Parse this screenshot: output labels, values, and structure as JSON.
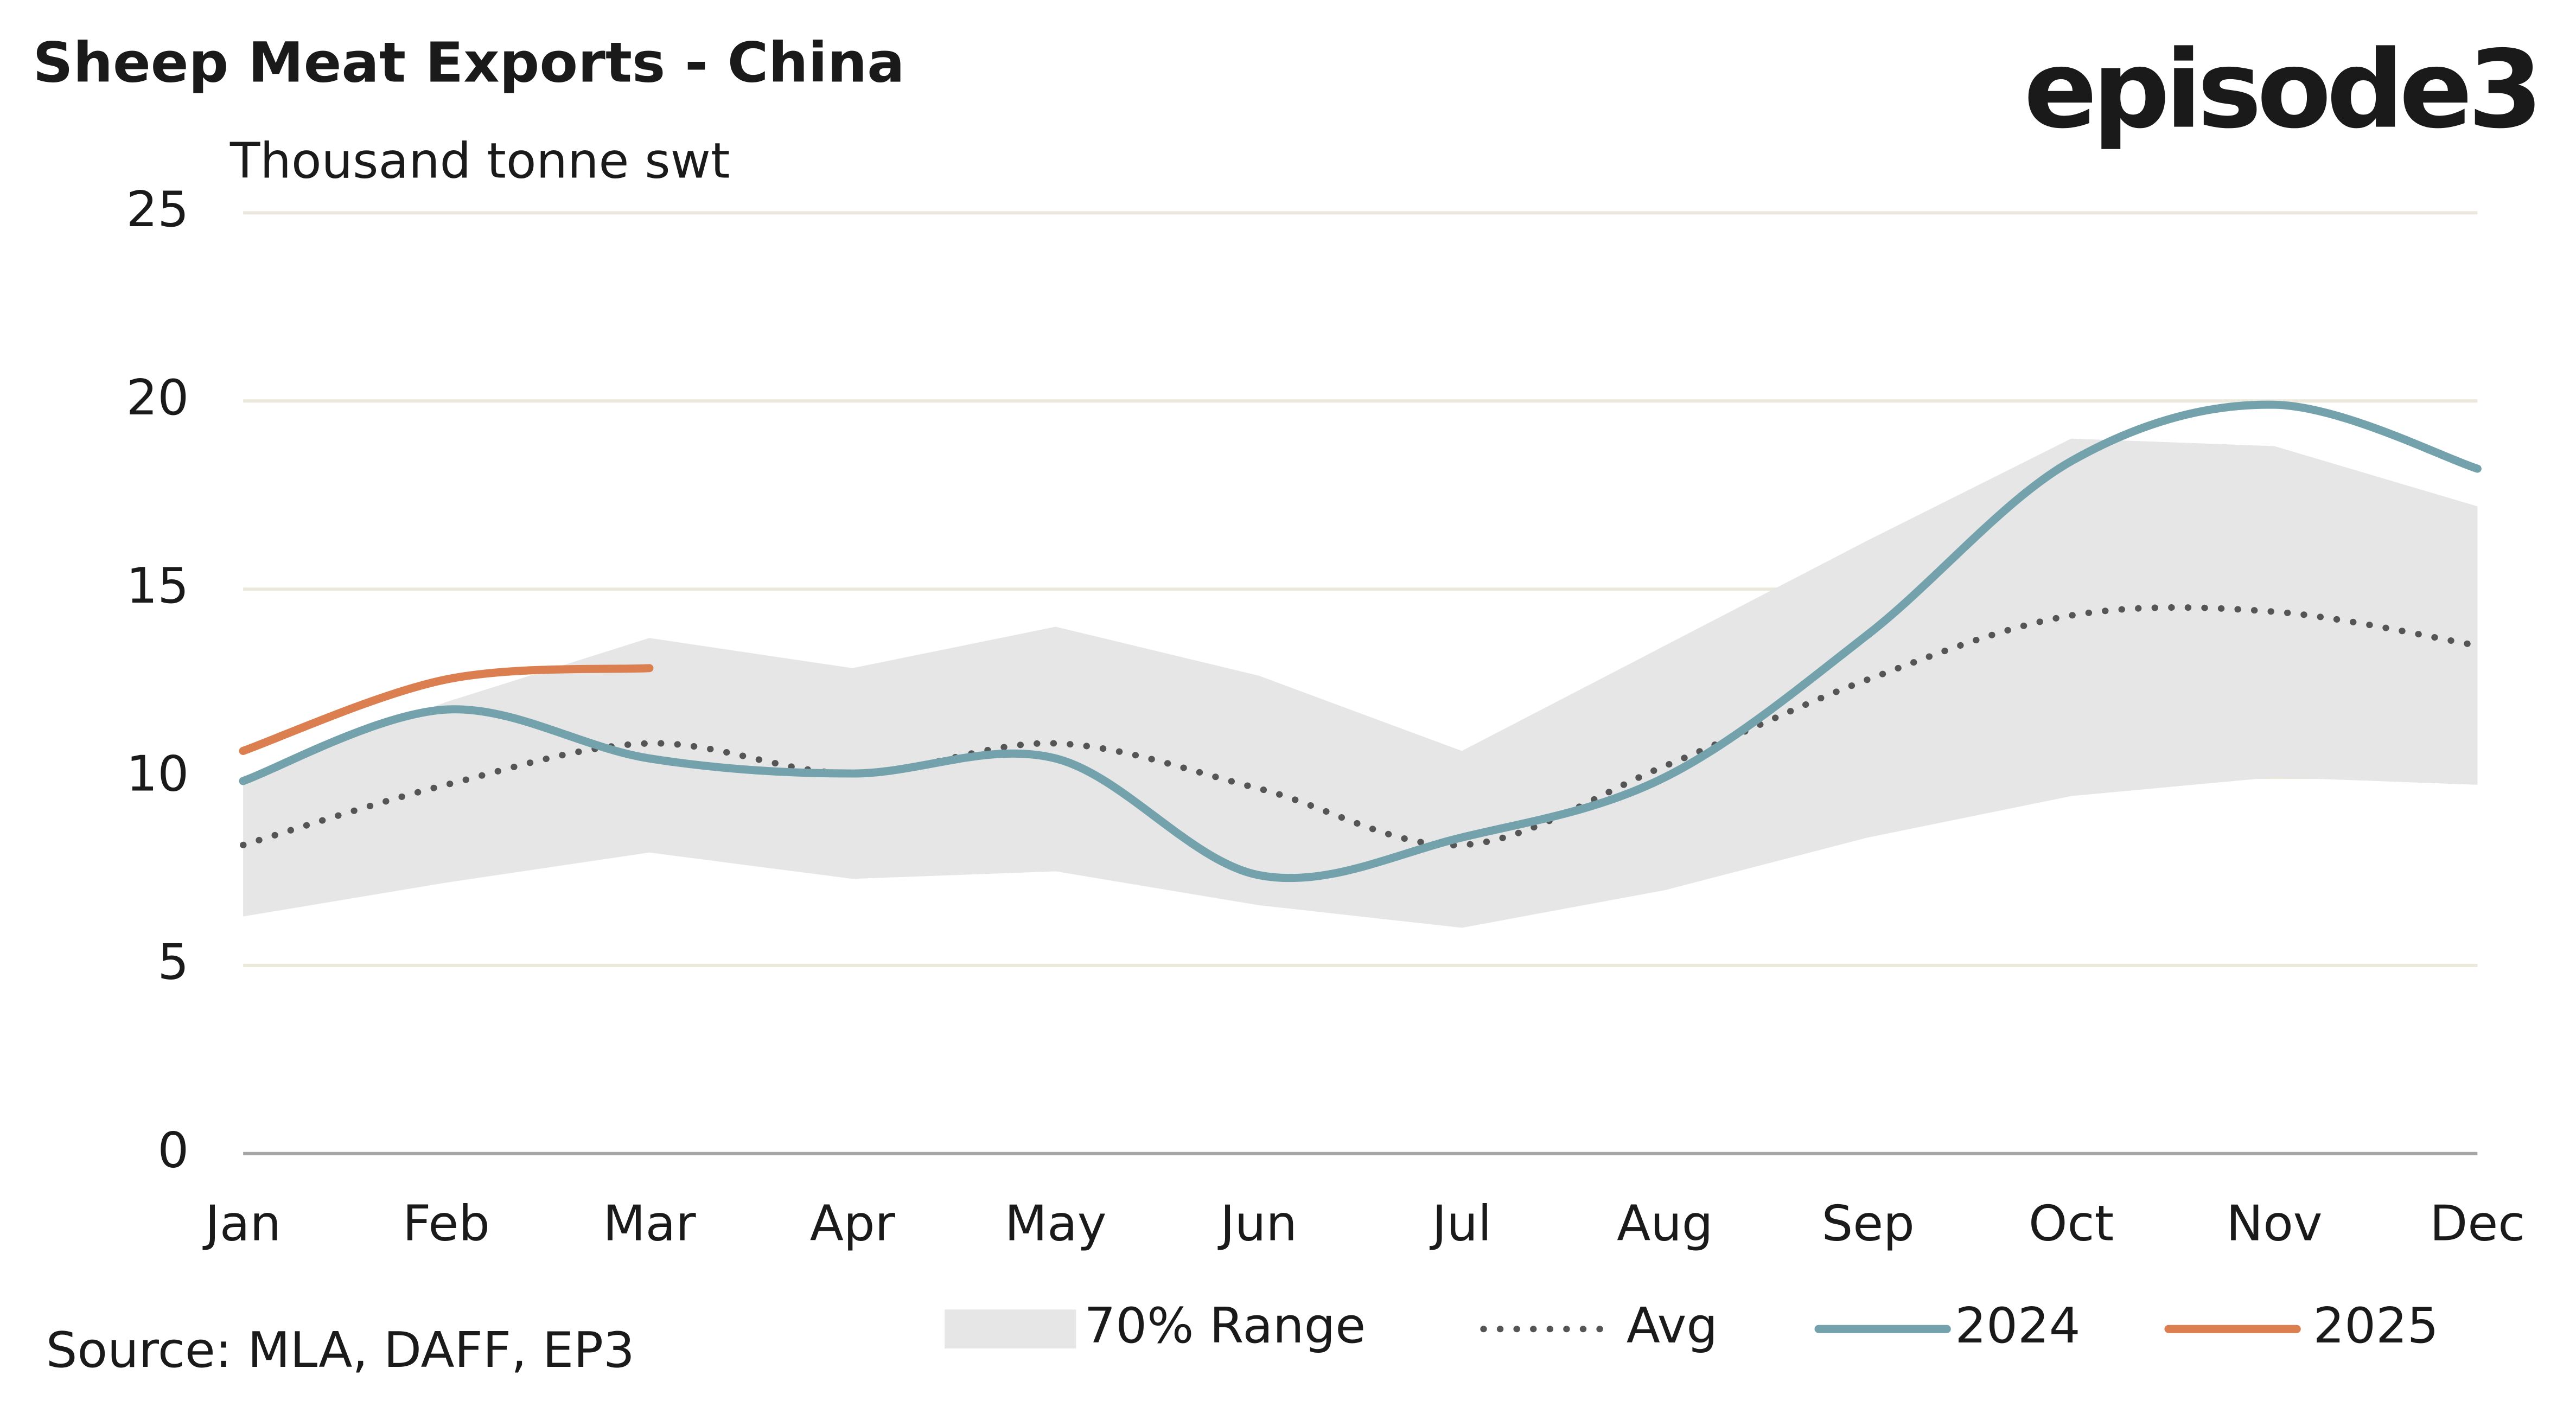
{
  "chart_data": {
    "type": "line",
    "title": "Sheep Meat Exports - China",
    "y_label": "Thousand tonne swt",
    "source": "Source: MLA, DAFF, EP3",
    "logo": "episode3",
    "categories": [
      "Jan",
      "Feb",
      "Mar",
      "Apr",
      "May",
      "Jun",
      "Jul",
      "Aug",
      "Sep",
      "Oct",
      "Nov",
      "Dec"
    ],
    "ylim": [
      0,
      25
    ],
    "yticks": [
      0,
      5,
      10,
      15,
      20,
      25
    ],
    "grid": true,
    "legend": "bottom",
    "band": {
      "name": "70% Range",
      "color": "#e6e6e6",
      "low": [
        6.3,
        7.2,
        8.0,
        7.3,
        7.5,
        6.6,
        6.0,
        7.0,
        8.4,
        9.5,
        10.0,
        9.8
      ],
      "high": [
        10.0,
        12.0,
        13.7,
        12.9,
        14.0,
        12.7,
        10.7,
        13.5,
        16.3,
        19.0,
        18.8,
        17.2
      ]
    },
    "series": [
      {
        "name": "Avg",
        "color": "#555555",
        "style": "dotted",
        "values": [
          8.2,
          9.8,
          10.9,
          10.1,
          10.9,
          9.7,
          8.2,
          10.3,
          12.6,
          14.3,
          14.4,
          13.5
        ]
      },
      {
        "name": "2024",
        "color": "#74a2ac",
        "style": "solid",
        "values": [
          9.9,
          11.8,
          10.5,
          10.1,
          10.5,
          7.4,
          8.4,
          10.0,
          13.8,
          18.4,
          19.9,
          18.2
        ]
      },
      {
        "name": "2025",
        "color": "#dc7f50",
        "style": "solid",
        "values": [
          10.7,
          12.6,
          12.9,
          null,
          null,
          null,
          null,
          null,
          null,
          null,
          null,
          null
        ]
      }
    ]
  }
}
